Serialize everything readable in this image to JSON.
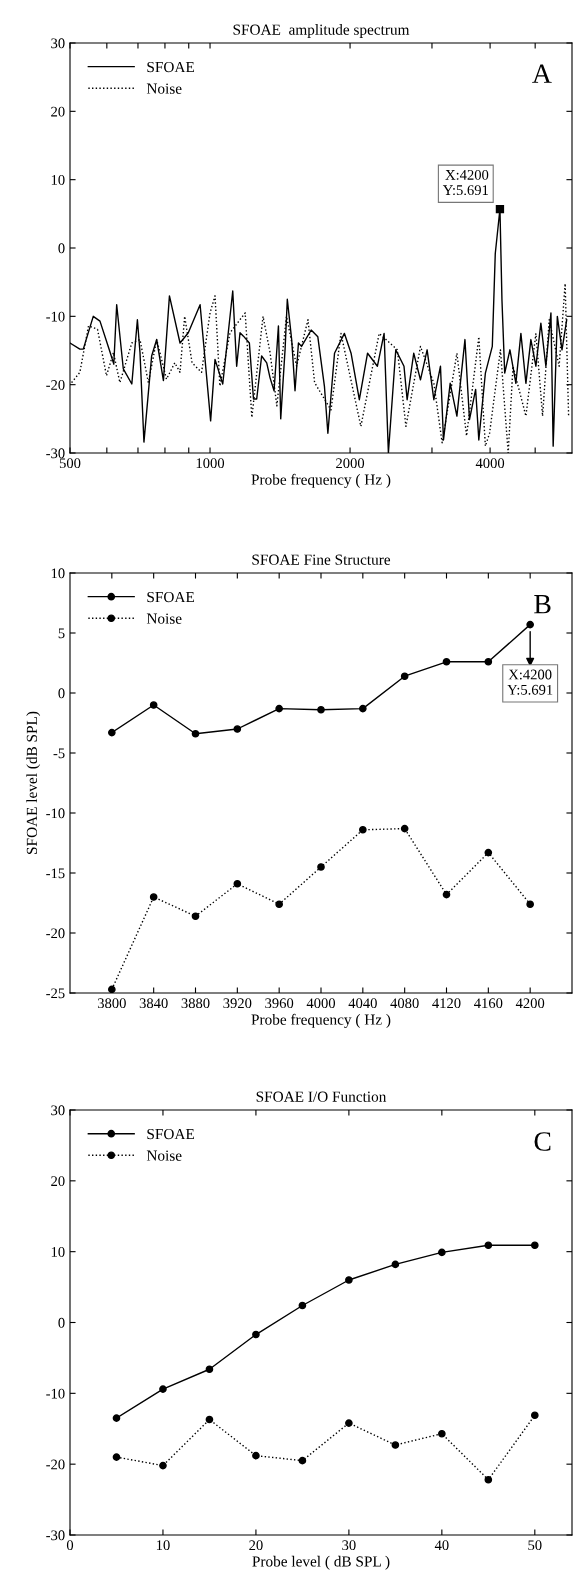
{
  "chart_data": [
    {
      "type": "line",
      "title": "SFOAE  amplitude spectrum",
      "xlabel": "Probe frequency ( Hz )",
      "log": "x",
      "legend": "top left",
      "xlim": [
        500,
        6000
      ],
      "xticks": [
        500,
        {
          "value": 600,
          "label": null
        },
        {
          "value": 700,
          "label": null
        },
        {
          "value": 800,
          "label": null
        },
        {
          "value": 900,
          "label": null
        },
        1000,
        2000,
        {
          "value": 3000,
          "label": null
        },
        4000,
        {
          "value": 5000,
          "label": null
        }
      ],
      "ylim": [
        -30,
        30
      ],
      "yticks": [
        -30,
        -20,
        -10,
        0,
        10,
        20,
        30
      ],
      "annotations": [
        "A",
        {
          "text": "X:4200\nY:5.691",
          "x": 4200,
          "y": 5.691
        }
      ],
      "series": [
        {
          "name": "SFOAE",
          "color": "#000000",
          "line_style": "solid",
          "marker": "none",
          "x": [
            500,
            525,
            534,
            561,
            580,
            610,
            621,
            630,
            651,
            679,
            698,
            707,
            721,
            749,
            768,
            794,
            818,
            862,
            898,
            952,
            1003,
            1025,
            1065,
            1119,
            1141,
            1160,
            1180,
            1215,
            1240,
            1260,
            1291,
            1324,
            1346,
            1373,
            1403,
            1419,
            1450,
            1466,
            1498,
            1523,
            1549,
            1573,
            1650,
            1705,
            1762,
            1792,
            1852,
            1945,
            2010,
            2094,
            2181,
            2290,
            2367,
            2418,
            2508,
            2612,
            2653,
            2741,
            2834,
            2929,
            3028,
            3129,
            3176,
            3283,
            3394,
            3532,
            3612,
            3724,
            3783,
            3908,
            4044,
            4104,
            4200,
            4242,
            4300,
            4413,
            4545,
            4659,
            4776,
            4895,
            5018,
            5143,
            5272,
            5406,
            5466,
            5580,
            5710,
            5845
          ],
          "values": [
            -13.9,
            -14.8,
            -14.8,
            -10.0,
            -10.7,
            -15.3,
            -17.0,
            -8.3,
            -17.7,
            -19.9,
            -10.5,
            -15.3,
            -28.4,
            -15.8,
            -13.4,
            -19.4,
            -7.0,
            -13.9,
            -12.4,
            -8.3,
            -25.3,
            -16.3,
            -19.9,
            -6.3,
            -17.3,
            -12.4,
            -12.9,
            -13.9,
            -22.1,
            -22.1,
            -15.8,
            -16.8,
            -19.0,
            -20.9,
            -11.4,
            -25.0,
            -14.8,
            -7.5,
            -13.4,
            -20.9,
            -13.9,
            -14.4,
            -12.0,
            -13.0,
            -20.3,
            -27.1,
            -15.4,
            -12.5,
            -15.4,
            -22.2,
            -15.4,
            -17.3,
            -12.5,
            -30.0,
            -14.9,
            -17.3,
            -22.2,
            -15.4,
            -19.3,
            -14.9,
            -22.2,
            -17.3,
            -28.1,
            -19.8,
            -24.6,
            -13.4,
            -25.1,
            -20.7,
            -28.1,
            -18.3,
            -14.4,
            -0.8,
            5.7,
            -7.6,
            -18.3,
            -14.9,
            -19.8,
            -12.5,
            -19.8,
            -13.4,
            -17.3,
            -11.0,
            -17.3,
            -9.5,
            -29.0,
            -10.0,
            -14.9,
            -10.5
          ]
        },
        {
          "name": "Noise",
          "color": "#000000",
          "line_style": "dotted",
          "marker": "none",
          "x": [
            504,
            525,
            548,
            573,
            599,
            620,
            640,
            679,
            707,
            737,
            768,
            806,
            840,
            862,
            882,
            915,
            959,
            1000,
            1025,
            1050,
            1104,
            1190,
            1230,
            1300,
            1346,
            1392,
            1460,
            1535,
            1624,
            1678,
            1820,
            1912,
            2110,
            2310,
            2528,
            2637,
            2834,
            3028,
            3155,
            3394,
            3560,
            3783,
            3908,
            3990,
            4210,
            4375,
            4480,
            4776,
            5018,
            5187,
            5360,
            5630,
            5800,
            5900
          ],
          "values": [
            -19.7,
            -18.2,
            -11.4,
            -11.9,
            -18.7,
            -15.3,
            -19.7,
            -13.9,
            -13.4,
            -19.7,
            -13.4,
            -19.2,
            -16.8,
            -18.2,
            -10.0,
            -16.8,
            -18.2,
            -9.5,
            -7.0,
            -20.2,
            -12.4,
            -9.5,
            -24.8,
            -10.0,
            -15.3,
            -23.1,
            -10.0,
            -17.3,
            -10.5,
            -19.7,
            -23.7,
            -12.5,
            -26.1,
            -12.5,
            -14.9,
            -26.1,
            -14.4,
            -19.8,
            -28.5,
            -15.4,
            -27.5,
            -13.0,
            -29.0,
            -27.1,
            -14.9,
            -30.0,
            -17.3,
            -24.6,
            -12.5,
            -24.6,
            -10.5,
            -17.3,
            -5.2,
            -24.6
          ]
        }
      ]
    },
    {
      "type": "line",
      "title": "SFOAE Fine Structure",
      "xlabel": "Probe frequency ( Hz )",
      "ylabel": "SFOAE level (dB SPL)",
      "legend": "top left",
      "x": [
        3800,
        3840,
        3880,
        3920,
        3960,
        4000,
        4040,
        4080,
        4120,
        4160,
        4200
      ],
      "xlim": [
        3760,
        4240
      ],
      "xticks": [
        3800,
        3840,
        3880,
        3920,
        3960,
        4000,
        4040,
        4080,
        4120,
        4160,
        4200
      ],
      "ylim": [
        -25,
        10
      ],
      "yticks": [
        -25,
        -20,
        -15,
        -10,
        -5,
        0,
        5,
        10
      ],
      "annotations": [
        "B",
        {
          "text": "X:4200\nY:5.691",
          "x": 4200,
          "y": 5.691
        }
      ],
      "series": [
        {
          "name": "SFOAE",
          "color": "#000000",
          "line_style": "solid",
          "marker": "circle",
          "values": [
            -3.3,
            -1.0,
            -3.4,
            -3.0,
            -1.3,
            -1.4,
            -1.3,
            1.4,
            2.6,
            2.6,
            5.7
          ]
        },
        {
          "name": "Noise",
          "color": "#000000",
          "line_style": "dotted",
          "marker": "circle",
          "values": [
            -24.7,
            -17.0,
            -18.6,
            -15.9,
            -17.6,
            -14.5,
            -11.4,
            -11.3,
            -16.8,
            -13.3,
            -17.6
          ]
        }
      ]
    },
    {
      "type": "line",
      "title": "SFOAE I/O Function",
      "xlabel": "Probe level ( dB SPL )",
      "legend": "top left",
      "x": [
        5,
        10,
        15,
        20,
        25,
        30,
        35,
        40,
        45,
        50
      ],
      "xlim": [
        0,
        54
      ],
      "xticks": [
        0,
        10,
        20,
        30,
        40,
        50
      ],
      "ylim": [
        -30,
        30
      ],
      "yticks": [
        -30,
        -20,
        -10,
        0,
        10,
        20,
        30
      ],
      "annotations": [
        "C"
      ],
      "series": [
        {
          "name": "SFOAE",
          "color": "#000000",
          "line_style": "solid",
          "marker": "circle",
          "values": [
            -13.5,
            -9.4,
            -6.6,
            -1.7,
            2.4,
            6.0,
            8.2,
            9.9,
            10.9,
            10.9
          ]
        },
        {
          "name": "Noise",
          "color": "#000000",
          "line_style": "dotted",
          "marker": "circle",
          "values": [
            -19.0,
            -20.2,
            -13.7,
            -18.8,
            -19.5,
            -14.2,
            -17.3,
            -15.7,
            -22.2,
            -13.1
          ]
        }
      ]
    }
  ]
}
